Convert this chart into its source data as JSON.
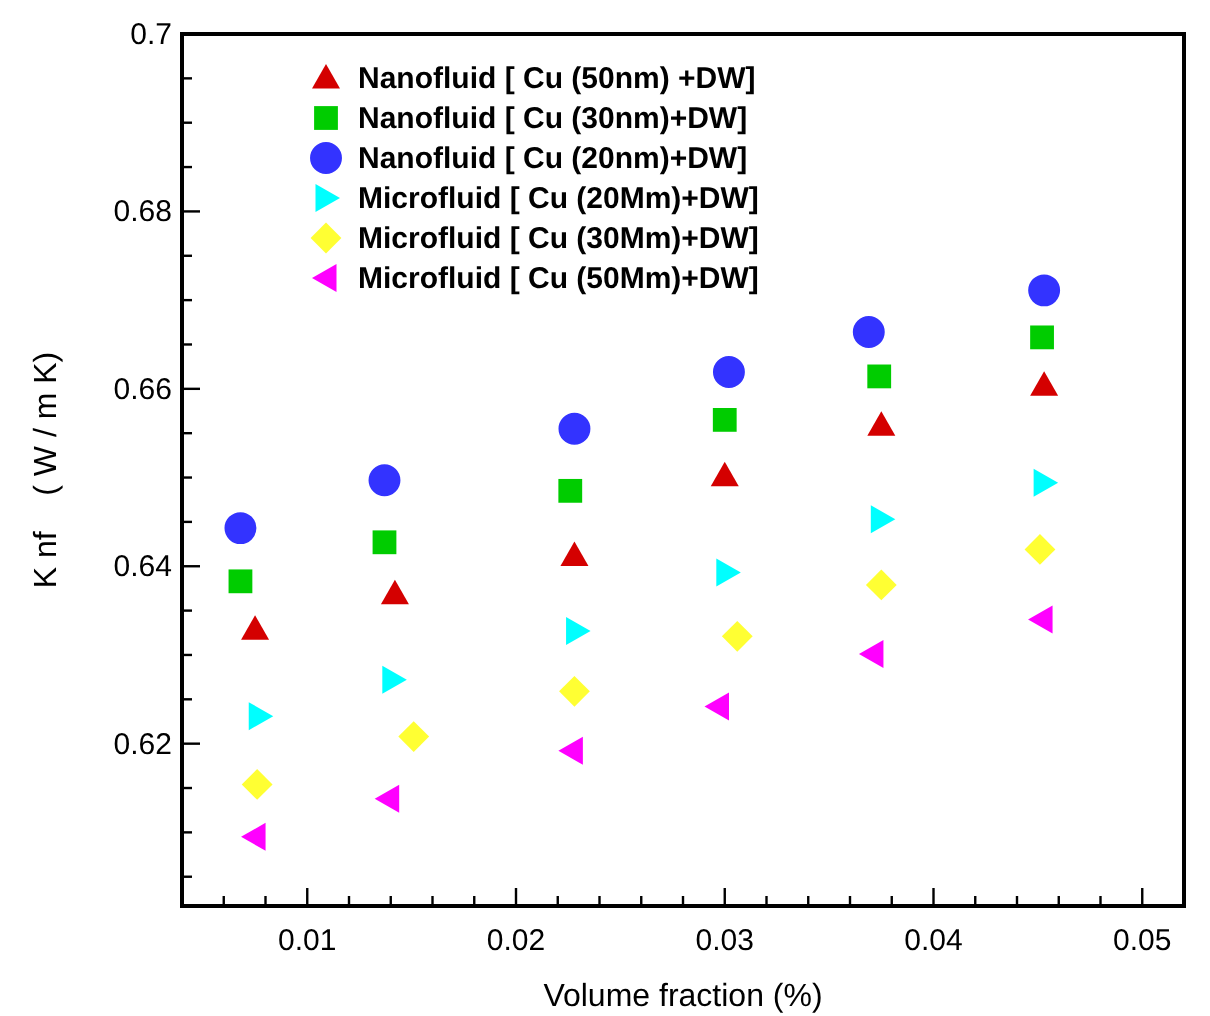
{
  "chart_data": {
    "type": "scatter",
    "xlabel": "Volume fraction (%)",
    "ylabel": "K nf    ( W / m K)",
    "xlim": [
      0.004,
      0.052
    ],
    "ylim": [
      0.6017,
      0.7
    ],
    "xticks": [
      {
        "value": 0.006,
        "label": null
      },
      {
        "value": 0.008,
        "label": null
      },
      0.01,
      {
        "value": 0.012,
        "label": null
      },
      {
        "value": 0.014,
        "label": null
      },
      {
        "value": 0.016,
        "label": null
      },
      {
        "value": 0.018,
        "label": null
      },
      0.02,
      {
        "value": 0.022,
        "label": null
      },
      {
        "value": 0.024,
        "label": null
      },
      {
        "value": 0.026,
        "label": null
      },
      {
        "value": 0.028,
        "label": null
      },
      0.03,
      {
        "value": 0.032,
        "label": null
      },
      {
        "value": 0.034,
        "label": null
      },
      {
        "value": 0.036,
        "label": null
      },
      {
        "value": 0.038,
        "label": null
      },
      0.04,
      {
        "value": 0.042,
        "label": null
      },
      {
        "value": 0.044,
        "label": null
      },
      {
        "value": 0.046,
        "label": null
      },
      {
        "value": 0.048,
        "label": null
      },
      0.05
    ],
    "yticks": [
      {
        "value": 0.605,
        "label": null
      },
      {
        "value": 0.61,
        "label": null
      },
      {
        "value": 0.615,
        "label": null
      },
      0.62,
      {
        "value": 0.625,
        "label": null
      },
      {
        "value": 0.63,
        "label": null
      },
      {
        "value": 0.635,
        "label": null
      },
      0.64,
      {
        "value": 0.645,
        "label": null
      },
      {
        "value": 0.65,
        "label": null
      },
      {
        "value": 0.655,
        "label": null
      },
      0.66,
      {
        "value": 0.665,
        "label": null
      },
      {
        "value": 0.67,
        "label": null
      },
      {
        "value": 0.675,
        "label": null
      },
      0.68,
      {
        "value": 0.685,
        "label": null
      },
      {
        "value": 0.69,
        "label": null
      },
      {
        "value": 0.695,
        "label": null
      },
      0.7
    ],
    "grid": false,
    "legend": "top left",
    "series": [
      {
        "name": "Nanofluid [ Cu (50nm) +DW]",
        "color": "#d40000",
        "marker": "triangle",
        "x": [
          0.0075,
          0.0142,
          0.0228,
          0.03,
          0.0375,
          0.0453
        ],
        "values": [
          0.6329,
          0.6369,
          0.6412,
          0.6502,
          0.6559,
          0.6604
        ]
      },
      {
        "name": "Nanofluid [ Cu (30nm)+DW]",
        "color": "#00cc00",
        "marker": "square",
        "x": [
          0.0068,
          0.0137,
          0.0226,
          0.03,
          0.0374,
          0.0452
        ],
        "values": [
          0.6383,
          0.6427,
          0.6485,
          0.6565,
          0.6614,
          0.6658
        ]
      },
      {
        "name": "Nanofluid [ Cu (20nm)+DW]",
        "color": "#3333ff",
        "marker": "circle",
        "x": [
          0.0068,
          0.0137,
          0.0228,
          0.0302,
          0.0369,
          0.0453
        ],
        "values": [
          0.6443,
          0.6497,
          0.6555,
          0.6619,
          0.6664,
          0.6711
        ]
      },
      {
        "name": "Microfluid [ Cu (20Mm)+DW]",
        "color": "#00ffff",
        "marker": "triangle-right",
        "x": [
          0.0077,
          0.0141,
          0.0229,
          0.0301,
          0.0375,
          0.0453
        ],
        "values": [
          0.6231,
          0.6272,
          0.6327,
          0.6393,
          0.6453,
          0.6494
        ]
      },
      {
        "name": "Microfluid [ Cu (30Mm)+DW]",
        "color": "#ffff33",
        "marker": "diamond",
        "x": [
          0.0076,
          0.0151,
          0.0228,
          0.0306,
          0.0375,
          0.0451
        ],
        "values": [
          0.6154,
          0.6208,
          0.6259,
          0.6321,
          0.6379,
          0.6419
        ]
      },
      {
        "name": "Microfluid [ Cu (50Mm)+DW]",
        "color": "#ff00ff",
        "marker": "triangle-left",
        "x": [
          0.0075,
          0.0139,
          0.0227,
          0.0297,
          0.0371,
          0.0452
        ],
        "values": [
          0.6095,
          0.6138,
          0.6192,
          0.6242,
          0.6301,
          0.634
        ]
      }
    ]
  }
}
